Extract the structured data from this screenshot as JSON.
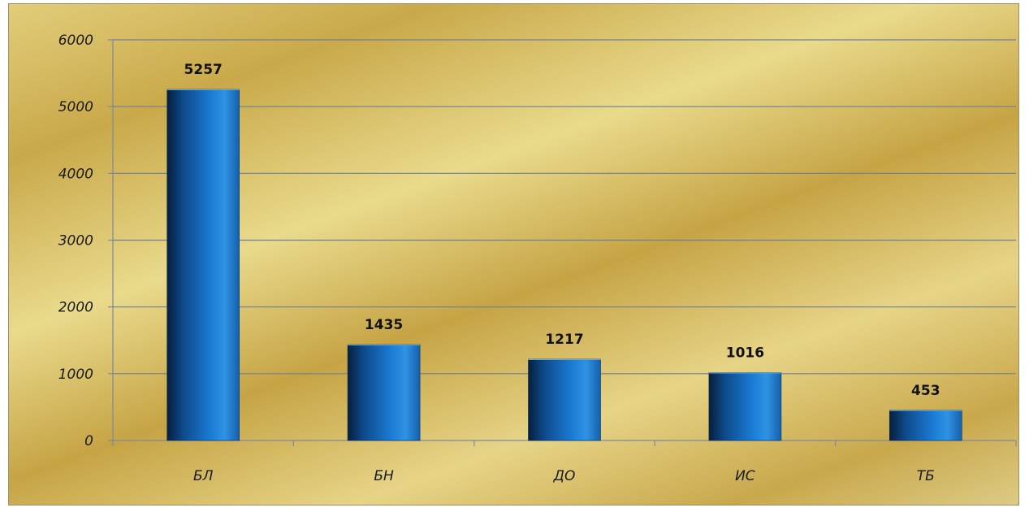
{
  "chart_data": {
    "type": "bar",
    "categories": [
      "БЛ",
      "БН",
      "ДО",
      "ИС",
      "ТБ"
    ],
    "values": [
      5257,
      1435,
      1217,
      1016,
      453
    ],
    "title": "",
    "xlabel": "",
    "ylabel": "",
    "ylim": [
      0,
      6000
    ],
    "yticks": [
      "0",
      "1000",
      "2000",
      "3000",
      "4000",
      "5000",
      "6000"
    ],
    "grid": true,
    "legend": "none",
    "data_labels": true,
    "colors": {
      "bar_dark": "#0b3a6e",
      "bar_mid": "#1b74c9",
      "bar_light": "#3a9be8",
      "background": "#d8c06a"
    }
  }
}
